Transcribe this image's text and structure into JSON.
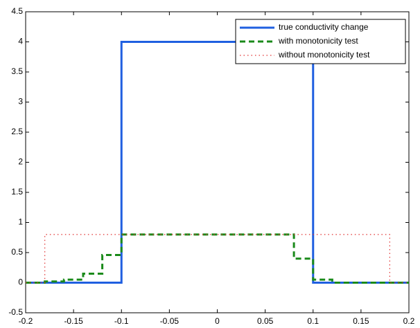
{
  "chart_data": {
    "type": "line",
    "xlim": [
      -0.2,
      0.2
    ],
    "ylim": [
      -0.5,
      4.5
    ],
    "xticks": [
      -0.2,
      -0.15,
      -0.1,
      -0.05,
      0,
      0.05,
      0.1,
      0.15,
      0.2
    ],
    "yticks": [
      -0.5,
      0,
      0.5,
      1,
      1.5,
      2,
      2.5,
      3,
      3.5,
      4,
      4.5
    ],
    "legend": "upper right",
    "series": [
      {
        "name": "true conductivity change",
        "color": "#1f5fe0",
        "dash": "solid",
        "x": [
          -0.2,
          -0.1,
          -0.1,
          0.1,
          0.1,
          0.2
        ],
        "values": [
          0,
          0,
          4,
          4,
          0,
          0
        ]
      },
      {
        "name": "with monotonicity test",
        "color": "#1a8a1a",
        "dash": "dashed",
        "x": [
          -0.2,
          -0.18,
          -0.18,
          -0.16,
          -0.16,
          -0.14,
          -0.14,
          -0.12,
          -0.12,
          -0.1,
          -0.1,
          0.08,
          0.08,
          0.1,
          0.1,
          0.12,
          0.12,
          0.2
        ],
        "values": [
          0,
          0,
          0.02,
          0.02,
          0.05,
          0.05,
          0.15,
          0.15,
          0.46,
          0.46,
          0.8,
          0.8,
          0.4,
          0.4,
          0.05,
          0.05,
          0,
          0
        ]
      },
      {
        "name": "without monotonicity test",
        "color": "#e03030",
        "dash": "dotted",
        "x": [
          -0.2,
          -0.18,
          -0.18,
          0.18,
          0.18,
          0.2
        ],
        "values": [
          0,
          0,
          0.8,
          0.8,
          0,
          0
        ]
      }
    ]
  }
}
